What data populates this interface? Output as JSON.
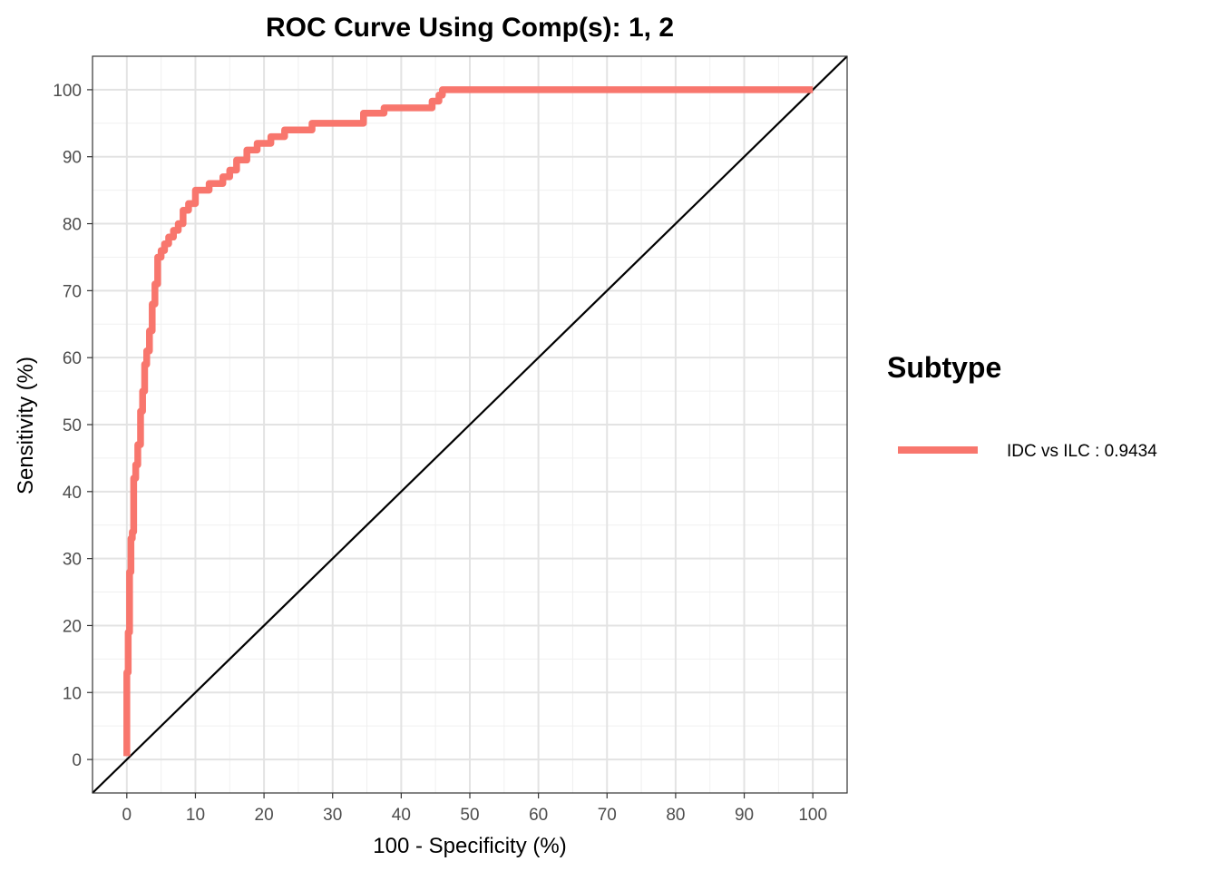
{
  "chart_data": {
    "type": "line",
    "title": "ROC Curve Using Comp(s): 1, 2",
    "xlabel": "100 - Specificity (%)",
    "ylabel": "Sensitivity (%)",
    "xlim": [
      -5,
      105
    ],
    "ylim": [
      -5,
      105
    ],
    "x_ticks": [
      0,
      10,
      20,
      30,
      40,
      50,
      60,
      70,
      80,
      90,
      100
    ],
    "y_ticks": [
      0,
      10,
      20,
      30,
      40,
      50,
      60,
      70,
      80,
      90,
      100
    ],
    "grid": true,
    "legend": {
      "title": "Subtype",
      "position": "right"
    },
    "series": [
      {
        "name": "IDC vs ILC : 0.9434",
        "color": "#F8766D",
        "x": [
          0,
          0,
          0.2,
          0.2,
          0.4,
          0.4,
          0.6,
          0.6,
          0.8,
          0.8,
          1.0,
          1.0,
          1.3,
          1.3,
          1.6,
          1.6,
          2.0,
          2.0,
          2.3,
          2.3,
          2.6,
          2.6,
          2.9,
          2.9,
          3.3,
          3.3,
          3.7,
          3.7,
          4.1,
          4.1,
          4.5,
          4.5,
          5.0,
          5.0,
          5.5,
          5.5,
          6.1,
          6.1,
          6.8,
          6.8,
          7.5,
          7.5,
          8.2,
          8.2,
          9.0,
          9.0,
          10.0,
          10.0,
          12.0,
          12.0,
          14.0,
          14.0,
          15.0,
          15.0,
          16.0,
          16.0,
          17.5,
          17.5,
          19.0,
          19.0,
          21.0,
          21.0,
          23.0,
          23.0,
          27.0,
          27.0,
          34.5,
          34.5,
          37.5,
          37.5,
          44.5,
          44.5,
          45.5,
          45.5,
          46.0,
          46.0,
          100
        ],
        "y": [
          0.5,
          13,
          13,
          19,
          19,
          28,
          28,
          33,
          33,
          34,
          34,
          42,
          42,
          44,
          44,
          47,
          47,
          52,
          52,
          55,
          55,
          59,
          59,
          61,
          61,
          64,
          64,
          68,
          68,
          71,
          71,
          75,
          75,
          76,
          76,
          77,
          77,
          78,
          78,
          79,
          79,
          80,
          80,
          82,
          82,
          83,
          83,
          85,
          85,
          86,
          86,
          87,
          87,
          88,
          88,
          89.5,
          89.5,
          91,
          91,
          92,
          92,
          93,
          93,
          94,
          94,
          95,
          95,
          96.5,
          96.5,
          97.3,
          97.3,
          98.3,
          98.3,
          99.2,
          99.2,
          100,
          100
        ]
      }
    ],
    "reference_line": {
      "x": [
        -5,
        105
      ],
      "y": [
        -5,
        105
      ],
      "color": "#000000"
    }
  }
}
